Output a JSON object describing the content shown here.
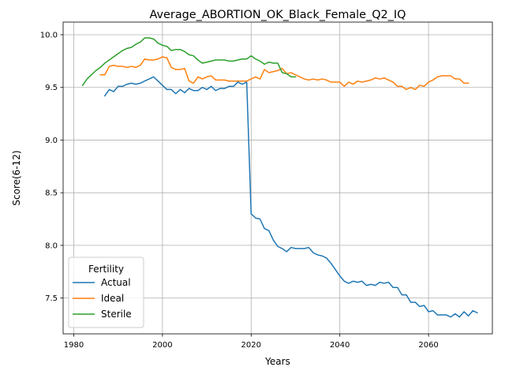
{
  "chart_data": {
    "type": "line",
    "title": "Average_ABORTION_OK_Black_Female_Q2_IQ",
    "xlabel": "Years",
    "ylabel": "Score(6-12)",
    "xlim": [
      1977.6,
      2074.4
    ],
    "ylim": [
      7.16,
      10.12
    ],
    "xticks": [
      1980,
      2000,
      2020,
      2040,
      2060
    ],
    "yticks": [
      7.5,
      8.0,
      8.5,
      9.0,
      9.5,
      10.0
    ],
    "ytick_labels": [
      "7.5",
      "8.0",
      "8.5",
      "9.0",
      "9.5",
      "10.0"
    ],
    "grid": true,
    "legend": {
      "title": "Fertility",
      "position": "lower-left"
    },
    "colors": {
      "Actual": "#1f77b4",
      "Ideal": "#ff7f0e",
      "Sterile": "#2ca02c"
    },
    "series": [
      {
        "name": "Actual",
        "x_start": 1987,
        "values": [
          9.42,
          9.48,
          9.46,
          9.51,
          9.51,
          9.53,
          9.54,
          9.53,
          9.54,
          9.56,
          9.58,
          9.6,
          9.56,
          9.52,
          9.48,
          9.48,
          9.44,
          9.48,
          9.45,
          9.49,
          9.47,
          9.47,
          9.5,
          9.48,
          9.51,
          9.47,
          9.49,
          9.49,
          9.51,
          9.51,
          9.55,
          9.53,
          9.55,
          8.3,
          8.26,
          8.25,
          8.16,
          8.14,
          8.05,
          7.99,
          7.97,
          7.94,
          7.98,
          7.97,
          7.97,
          7.97,
          7.98,
          7.93,
          7.91,
          7.9,
          7.88,
          7.83,
          7.77,
          7.71,
          7.66,
          7.64,
          7.66,
          7.65,
          7.66,
          7.62,
          7.63,
          7.62,
          7.65,
          7.64,
          7.65,
          7.6,
          7.6,
          7.53,
          7.53,
          7.46,
          7.46,
          7.42,
          7.43,
          7.37,
          7.38,
          7.34,
          7.34,
          7.34,
          7.32,
          7.35,
          7.32,
          7.37,
          7.33,
          7.38,
          7.36
        ]
      },
      {
        "name": "Ideal",
        "x_start": 1986,
        "values": [
          9.62,
          9.62,
          9.7,
          9.71,
          9.7,
          9.7,
          9.69,
          9.7,
          9.69,
          9.71,
          9.77,
          9.76,
          9.76,
          9.77,
          9.79,
          9.78,
          9.69,
          9.67,
          9.67,
          9.68,
          9.56,
          9.54,
          9.6,
          9.58,
          9.6,
          9.61,
          9.57,
          9.57,
          9.57,
          9.56,
          9.56,
          9.56,
          9.56,
          9.56,
          9.58,
          9.6,
          9.58,
          9.67,
          9.64,
          9.65,
          9.66,
          9.68,
          9.63,
          9.64,
          9.62,
          9.6,
          9.58,
          9.57,
          9.58,
          9.57,
          9.58,
          9.57,
          9.55,
          9.55,
          9.55,
          9.51,
          9.55,
          9.53,
          9.56,
          9.55,
          9.56,
          9.57,
          9.59,
          9.58,
          9.59,
          9.57,
          9.55,
          9.51,
          9.51,
          9.48,
          9.5,
          9.48,
          9.52,
          9.51,
          9.55,
          9.57,
          9.6,
          9.61,
          9.61,
          9.61,
          9.58,
          9.58,
          9.54,
          9.54
        ]
      },
      {
        "name": "Sterile",
        "x_start": 1982,
        "values": [
          9.52,
          9.58,
          9.62,
          9.66,
          9.69,
          9.73,
          9.76,
          9.79,
          9.82,
          9.85,
          9.87,
          9.88,
          9.91,
          9.93,
          9.97,
          9.97,
          9.96,
          9.92,
          9.9,
          9.89,
          9.85,
          9.86,
          9.86,
          9.84,
          9.81,
          9.8,
          9.76,
          9.73,
          9.74,
          9.75,
          9.76,
          9.76,
          9.76,
          9.75,
          9.75,
          9.76,
          9.77,
          9.77,
          9.8,
          9.77,
          9.75,
          9.72,
          9.74,
          9.73,
          9.73,
          9.64,
          9.63,
          9.6,
          9.6
        ]
      }
    ]
  }
}
